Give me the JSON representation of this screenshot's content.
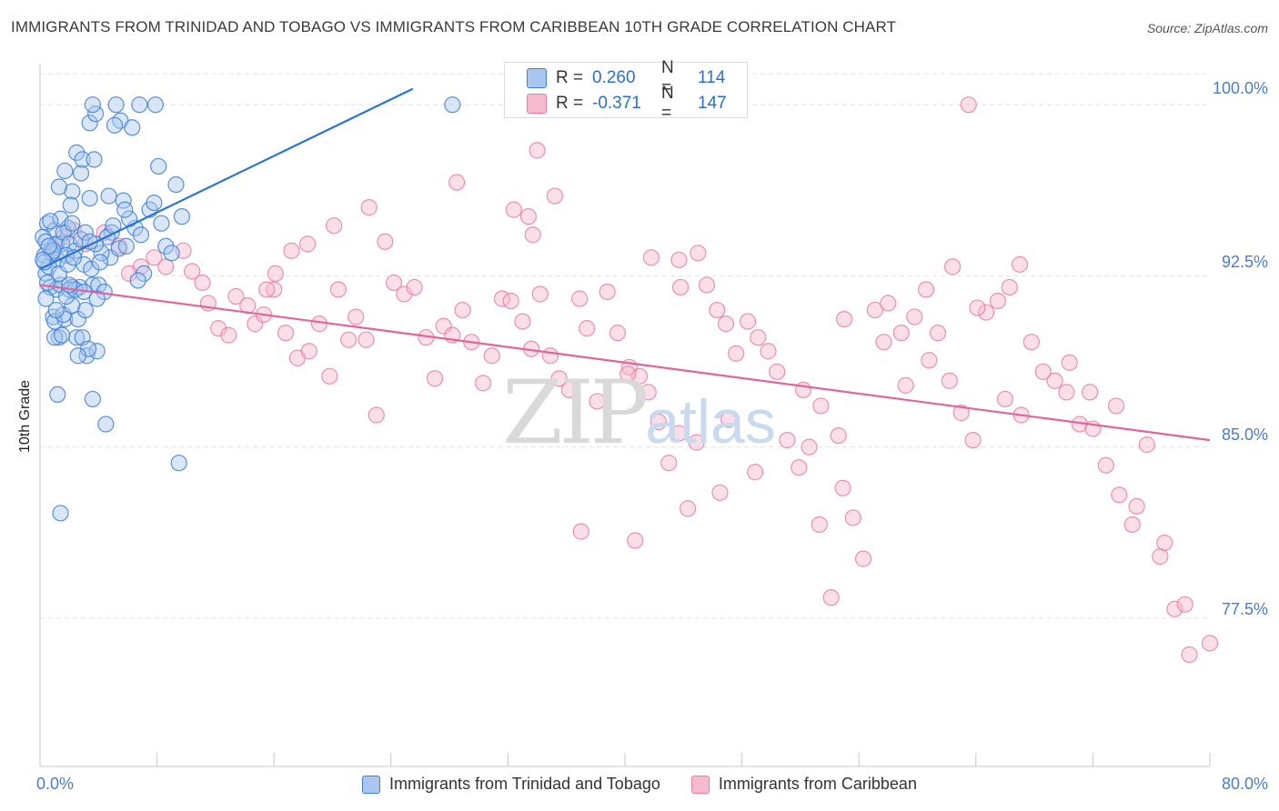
{
  "title": "IMMIGRANTS FROM TRINIDAD AND TOBAGO VS IMMIGRANTS FROM CARIBBEAN 10TH GRADE CORRELATION CHART",
  "source": "Source: ZipAtlas.com",
  "watermark": {
    "zip": "ZIP",
    "atlas": "atlas"
  },
  "legend": {
    "r_label": "R =",
    "n_label": "N =",
    "series1": {
      "r": "0.260",
      "n": "114"
    },
    "series2": {
      "r": "-0.371",
      "n": "147"
    }
  },
  "colors": {
    "blue_fill": "#a9c7ee",
    "blue_stroke": "#3f7fd4",
    "blue_line": "#2a74d3",
    "pink_fill": "#f6b9cd",
    "pink_stroke": "#e77fa3",
    "pink_line": "#e0659a",
    "tick_text": "#4a7cc7",
    "grid": "#e3e3e3"
  },
  "chart_data": {
    "type": "scatter",
    "title": "IMMIGRANTS FROM TRINIDAD AND TOBAGO VS IMMIGRANTS FROM CARIBBEAN 10TH GRADE CORRELATION CHART",
    "xlabel": "",
    "ylabel": "10th Grade",
    "xlim": [
      0,
      80
    ],
    "ylim": [
      71,
      101.8
    ],
    "x_ticks": [
      "0.0%",
      "80.0%"
    ],
    "y_ticks": [
      {
        "value": 77.5,
        "label": "77.5%"
      },
      {
        "value": 85.0,
        "label": "85.0%"
      },
      {
        "value": 92.5,
        "label": "92.5%"
      },
      {
        "value": 100.0,
        "label": "100.0%"
      }
    ],
    "grid": true,
    "legend_position": "top-center",
    "series": [
      {
        "name": "Immigrants from Trinidad and Tobago",
        "color": "#3f7fd4",
        "trend": {
          "x": [
            0,
            25.5
          ],
          "y": [
            92.8,
            100.7
          ]
        },
        "points": [
          [
            0.5,
            94.8
          ],
          [
            0.8,
            93.7
          ],
          [
            1.0,
            94.5
          ],
          [
            1.2,
            93.2
          ],
          [
            0.4,
            92.6
          ],
          [
            0.7,
            92.0
          ],
          [
            1.5,
            93.9
          ],
          [
            1.9,
            94.6
          ],
          [
            0.3,
            93.4
          ],
          [
            0.6,
            92.9
          ],
          [
            1.1,
            91.9
          ],
          [
            1.4,
            92.1
          ],
          [
            0.9,
            90.7
          ],
          [
            1.3,
            89.8
          ],
          [
            1.7,
            90.6
          ],
          [
            2.2,
            92.0
          ],
          [
            2.6,
            90.6
          ],
          [
            3.1,
            91.0
          ],
          [
            3.6,
            92.1
          ],
          [
            2.5,
            89.8
          ],
          [
            3.2,
            89.0
          ],
          [
            3.9,
            89.2
          ],
          [
            4.0,
            92.1
          ],
          [
            4.4,
            91.8
          ],
          [
            4.8,
            93.3
          ],
          [
            5.4,
            93.7
          ],
          [
            4.9,
            94.4
          ],
          [
            5.9,
            93.8
          ],
          [
            6.5,
            94.6
          ],
          [
            7.1,
            92.6
          ],
          [
            3.4,
            95.9
          ],
          [
            2.2,
            96.2
          ],
          [
            1.3,
            96.4
          ],
          [
            1.7,
            97.1
          ],
          [
            2.8,
            97.0
          ],
          [
            2.5,
            97.9
          ],
          [
            2.9,
            97.6
          ],
          [
            3.7,
            97.6
          ],
          [
            5.5,
            99.3
          ],
          [
            5.1,
            99.1
          ],
          [
            3.4,
            99.2
          ],
          [
            3.8,
            99.6
          ],
          [
            3.6,
            100.0
          ],
          [
            5.2,
            100.0
          ],
          [
            6.3,
            99.0
          ],
          [
            6.8,
            100.0
          ],
          [
            7.9,
            100.0
          ],
          [
            8.1,
            97.3
          ],
          [
            9.3,
            96.5
          ],
          [
            9.7,
            95.1
          ],
          [
            1.1,
            93.9
          ],
          [
            0.8,
            93.5
          ],
          [
            0.5,
            92.2
          ],
          [
            0.2,
            94.2
          ],
          [
            0.4,
            94.0
          ],
          [
            1.6,
            94.4
          ],
          [
            2.0,
            93.9
          ],
          [
            2.4,
            93.6
          ],
          [
            1.8,
            93.4
          ],
          [
            1.3,
            92.6
          ],
          [
            2.0,
            91.9
          ],
          [
            2.7,
            92.0
          ],
          [
            3.0,
            93.0
          ],
          [
            3.5,
            92.8
          ],
          [
            4.2,
            93.5
          ],
          [
            4.6,
            94.2
          ],
          [
            5.0,
            94.7
          ],
          [
            5.7,
            95.8
          ],
          [
            6.1,
            95.0
          ],
          [
            7.5,
            95.4
          ],
          [
            1.0,
            90.5
          ],
          [
            1.6,
            90.8
          ],
          [
            2.2,
            91.2
          ],
          [
            2.9,
            89.8
          ],
          [
            3.3,
            89.3
          ],
          [
            1.2,
            87.3
          ],
          [
            3.6,
            87.1
          ],
          [
            4.5,
            86.0
          ],
          [
            6.7,
            92.3
          ],
          [
            8.6,
            93.8
          ],
          [
            0.9,
            93.6
          ],
          [
            0.3,
            93.1
          ],
          [
            0.6,
            93.8
          ],
          [
            1.4,
            95.0
          ],
          [
            2.1,
            95.6
          ],
          [
            4.7,
            96.0
          ],
          [
            5.8,
            95.4
          ],
          [
            9.0,
            93.5
          ],
          [
            0.7,
            94.9
          ],
          [
            1.9,
            93.0
          ],
          [
            2.3,
            93.3
          ],
          [
            2.8,
            94.1
          ],
          [
            3.1,
            94.4
          ],
          [
            3.8,
            93.9
          ],
          [
            4.1,
            93.1
          ],
          [
            0.4,
            91.5
          ],
          [
            1.0,
            89.8
          ],
          [
            1.5,
            89.9
          ],
          [
            2.6,
            89.0
          ],
          [
            1.8,
            91.6
          ],
          [
            2.4,
            91.9
          ],
          [
            3.0,
            91.8
          ],
          [
            3.9,
            91.5
          ],
          [
            6.9,
            94.3
          ],
          [
            7.8,
            95.7
          ],
          [
            8.3,
            94.8
          ],
          [
            9.5,
            84.3
          ],
          [
            1.4,
            82.1
          ],
          [
            28.2,
            100.0
          ],
          [
            2.0,
            92.1
          ],
          [
            2.2,
            94.8
          ],
          [
            0.2,
            93.2
          ],
          [
            1.1,
            91.0
          ],
          [
            3.4,
            94.0
          ]
        ]
      },
      {
        "name": "Immigrants from Caribbean",
        "color": "#e77fa3",
        "trend": {
          "x": [
            0,
            80
          ],
          "y": [
            92.1,
            85.3
          ]
        },
        "points": [
          [
            0.9,
            93.7
          ],
          [
            1.6,
            94.2
          ],
          [
            2.3,
            94.5
          ],
          [
            3.1,
            93.9
          ],
          [
            4.4,
            94.4
          ],
          [
            5.4,
            93.8
          ],
          [
            6.1,
            92.6
          ],
          [
            6.9,
            92.9
          ],
          [
            7.8,
            93.3
          ],
          [
            8.6,
            92.9
          ],
          [
            9.8,
            93.6
          ],
          [
            10.4,
            92.7
          ],
          [
            11.1,
            92.2
          ],
          [
            11.5,
            91.3
          ],
          [
            12.2,
            90.2
          ],
          [
            12.9,
            89.9
          ],
          [
            13.4,
            91.6
          ],
          [
            14.2,
            91.2
          ],
          [
            14.7,
            90.4
          ],
          [
            15.3,
            90.8
          ],
          [
            16.0,
            91.9
          ],
          [
            16.8,
            90.0
          ],
          [
            17.6,
            88.9
          ],
          [
            18.4,
            89.2
          ],
          [
            19.1,
            90.4
          ],
          [
            19.8,
            88.1
          ],
          [
            20.4,
            91.9
          ],
          [
            21.1,
            89.7
          ],
          [
            21.6,
            90.7
          ],
          [
            22.3,
            89.7
          ],
          [
            23.0,
            86.4
          ],
          [
            23.6,
            94.0
          ],
          [
            24.2,
            92.2
          ],
          [
            24.9,
            91.7
          ],
          [
            25.6,
            92.0
          ],
          [
            26.4,
            89.8
          ],
          [
            27.0,
            88.0
          ],
          [
            27.6,
            90.3
          ],
          [
            28.2,
            89.9
          ],
          [
            28.9,
            91.0
          ],
          [
            29.5,
            89.6
          ],
          [
            30.3,
            87.8
          ],
          [
            30.9,
            89.0
          ],
          [
            31.6,
            91.5
          ],
          [
            32.2,
            91.4
          ],
          [
            33.0,
            90.5
          ],
          [
            33.6,
            89.3
          ],
          [
            34.2,
            91.7
          ],
          [
            34.9,
            89.0
          ],
          [
            35.5,
            88.0
          ],
          [
            36.2,
            87.5
          ],
          [
            36.9,
            91.5
          ],
          [
            37.4,
            90.2
          ],
          [
            38.1,
            87.0
          ],
          [
            38.8,
            91.8
          ],
          [
            39.5,
            90.0
          ],
          [
            40.3,
            88.5
          ],
          [
            41.0,
            88.1
          ],
          [
            41.6,
            87.4
          ],
          [
            42.3,
            86.1
          ],
          [
            43.0,
            84.3
          ],
          [
            43.7,
            85.6
          ],
          [
            44.3,
            82.3
          ],
          [
            44.9,
            85.2
          ],
          [
            45.6,
            92.1
          ],
          [
            46.3,
            91.0
          ],
          [
            46.9,
            90.4
          ],
          [
            47.6,
            89.1
          ],
          [
            48.4,
            90.5
          ],
          [
            49.1,
            89.8
          ],
          [
            49.8,
            89.2
          ],
          [
            50.4,
            88.3
          ],
          [
            51.1,
            85.3
          ],
          [
            51.9,
            84.1
          ],
          [
            52.6,
            85.0
          ],
          [
            53.3,
            81.6
          ],
          [
            54.1,
            78.4
          ],
          [
            54.9,
            83.2
          ],
          [
            55.6,
            81.9
          ],
          [
            56.3,
            80.1
          ],
          [
            57.1,
            91.0
          ],
          [
            58.0,
            91.3
          ],
          [
            58.9,
            90.0
          ],
          [
            59.8,
            90.7
          ],
          [
            60.6,
            91.9
          ],
          [
            61.4,
            90.0
          ],
          [
            62.2,
            87.9
          ],
          [
            63.0,
            86.5
          ],
          [
            63.8,
            85.3
          ],
          [
            64.7,
            90.9
          ],
          [
            65.5,
            91.4
          ],
          [
            66.3,
            92.0
          ],
          [
            67.0,
            93.0
          ],
          [
            67.8,
            89.6
          ],
          [
            68.6,
            88.3
          ],
          [
            69.4,
            87.9
          ],
          [
            70.2,
            87.4
          ],
          [
            71.1,
            86.0
          ],
          [
            72.0,
            85.8
          ],
          [
            72.9,
            84.2
          ],
          [
            73.8,
            82.9
          ],
          [
            74.7,
            81.6
          ],
          [
            75.7,
            85.1
          ],
          [
            76.6,
            80.2
          ],
          [
            77.6,
            77.9
          ],
          [
            78.6,
            75.9
          ],
          [
            80.0,
            76.4
          ],
          [
            55.0,
            90.6
          ],
          [
            47.1,
            86.2
          ],
          [
            45.0,
            93.5
          ],
          [
            40.2,
            88.2
          ],
          [
            43.7,
            93.2
          ],
          [
            52.2,
            87.5
          ],
          [
            53.4,
            86.8
          ],
          [
            54.6,
            85.5
          ],
          [
            57.7,
            89.6
          ],
          [
            59.2,
            87.7
          ],
          [
            60.8,
            88.8
          ],
          [
            62.4,
            92.9
          ],
          [
            64.1,
            91.1
          ],
          [
            66.0,
            87.1
          ],
          [
            67.1,
            86.4
          ],
          [
            70.4,
            88.7
          ],
          [
            71.8,
            87.4
          ],
          [
            73.6,
            86.8
          ],
          [
            75.0,
            82.4
          ],
          [
            76.9,
            80.8
          ],
          [
            78.3,
            78.1
          ],
          [
            40.7,
            80.9
          ],
          [
            37.0,
            81.3
          ],
          [
            32.4,
            95.4
          ],
          [
            33.4,
            95.1
          ],
          [
            35.2,
            96.0
          ],
          [
            34.0,
            98.0
          ],
          [
            33.7,
            94.3
          ],
          [
            41.8,
            93.3
          ],
          [
            43.8,
            92.0
          ],
          [
            46.5,
            83.0
          ],
          [
            48.9,
            83.9
          ],
          [
            63.5,
            100.0
          ],
          [
            28.5,
            96.6
          ],
          [
            22.5,
            95.5
          ],
          [
            20.1,
            94.7
          ],
          [
            18.3,
            93.9
          ],
          [
            17.2,
            93.6
          ],
          [
            16.1,
            92.6
          ],
          [
            15.5,
            91.9
          ]
        ]
      }
    ]
  },
  "bottom_legend": {
    "series1_label": "Immigrants from Trinidad and Tobago",
    "series2_label": "Immigrants from Caribbean"
  }
}
